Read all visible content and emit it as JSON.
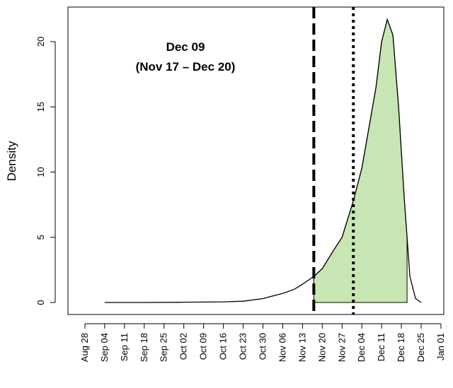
{
  "chart_data": {
    "type": "density",
    "y_label": "Density",
    "annotation": [
      "Dec 09",
      "(Nov 17 – Dec 20)"
    ],
    "x": [
      "Sep 04",
      "Sep 18",
      "Oct 02",
      "Oct 16",
      "Oct 23",
      "Oct 30",
      "Nov 06",
      "Nov 10",
      "Nov 13",
      "Nov 17",
      "Nov 20",
      "Nov 24",
      "Nov 27",
      "Dec 01",
      "Dec 04",
      "Dec 07",
      "Dec 09",
      "Dec 11",
      "Dec 13",
      "Dec 15",
      "Dec 17",
      "Dec 19",
      "Dec 20",
      "Dec 21",
      "Dec 23",
      "Dec 25"
    ],
    "values": [
      0,
      0,
      0.02,
      0.05,
      0.1,
      0.3,
      0.7,
      1.0,
      1.4,
      2.0,
      2.6,
      4.0,
      5.0,
      7.8,
      10.3,
      14,
      16.5,
      20,
      21.7,
      20.5,
      15,
      8,
      5,
      2,
      0.3,
      0
    ],
    "line_color": "#000000",
    "shade": [
      "Nov 17",
      "Dec 20"
    ],
    "shade_color": "#c8e6b4",
    "dashed_line": "Nov 17",
    "dotted_line": "Dec 01",
    "xlim": [
      "Aug 22",
      "Jan 02"
    ],
    "xticks": [
      "Aug 28",
      "Sep 04",
      "Sep 11",
      "Sep 18",
      "Sep 25",
      "Oct 02",
      "Oct 09",
      "Oct 16",
      "Oct 23",
      "Oct 30",
      "Nov 06",
      "Nov 13",
      "Nov 20",
      "Nov 27",
      "Dec 04",
      "Dec 11",
      "Dec 18",
      "Dec 25",
      "Jan 01"
    ],
    "ylim": [
      -0.92,
      22.65
    ],
    "yticks": [
      0,
      5,
      10,
      15,
      20
    ]
  }
}
